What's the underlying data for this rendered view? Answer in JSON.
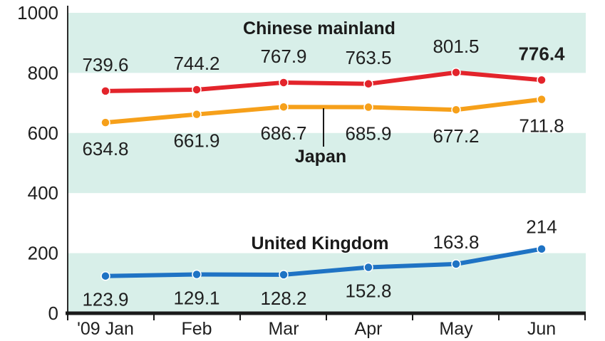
{
  "chart_data": {
    "type": "line",
    "categories": [
      "'09 Jan",
      "Feb",
      "Mar",
      "Apr",
      "May",
      "Jun"
    ],
    "ylim": [
      0,
      1000
    ],
    "yticks": [
      "0",
      "200",
      "400",
      "600",
      "800",
      "1000"
    ],
    "grid": "alternating horizontal bands",
    "series": [
      {
        "name": "Chinese mainland",
        "color": "#e3242b",
        "values": [
          739.6,
          744.2,
          767.9,
          763.5,
          801.5,
          776.4
        ],
        "labels": [
          "739.6",
          "744.2",
          "767.9",
          "763.5",
          "801.5",
          "776.4"
        ],
        "label_position": "above",
        "bold_last_label": true
      },
      {
        "name": "Japan",
        "color": "#f6a01a",
        "values": [
          634.8,
          661.9,
          686.7,
          685.9,
          677.2,
          711.8
        ],
        "labels": [
          "634.8",
          "661.9",
          "686.7",
          "685.9",
          "677.2",
          "711.8"
        ],
        "label_position": "below"
      },
      {
        "name": "United Kingdom",
        "color": "#1f73c4",
        "values": [
          123.9,
          129.1,
          128.2,
          152.8,
          163.8,
          214
        ],
        "labels": [
          "123.9",
          "129.1",
          "128.2",
          "152.8",
          "163.8",
          "214"
        ],
        "label_position": "mixed"
      }
    ]
  }
}
